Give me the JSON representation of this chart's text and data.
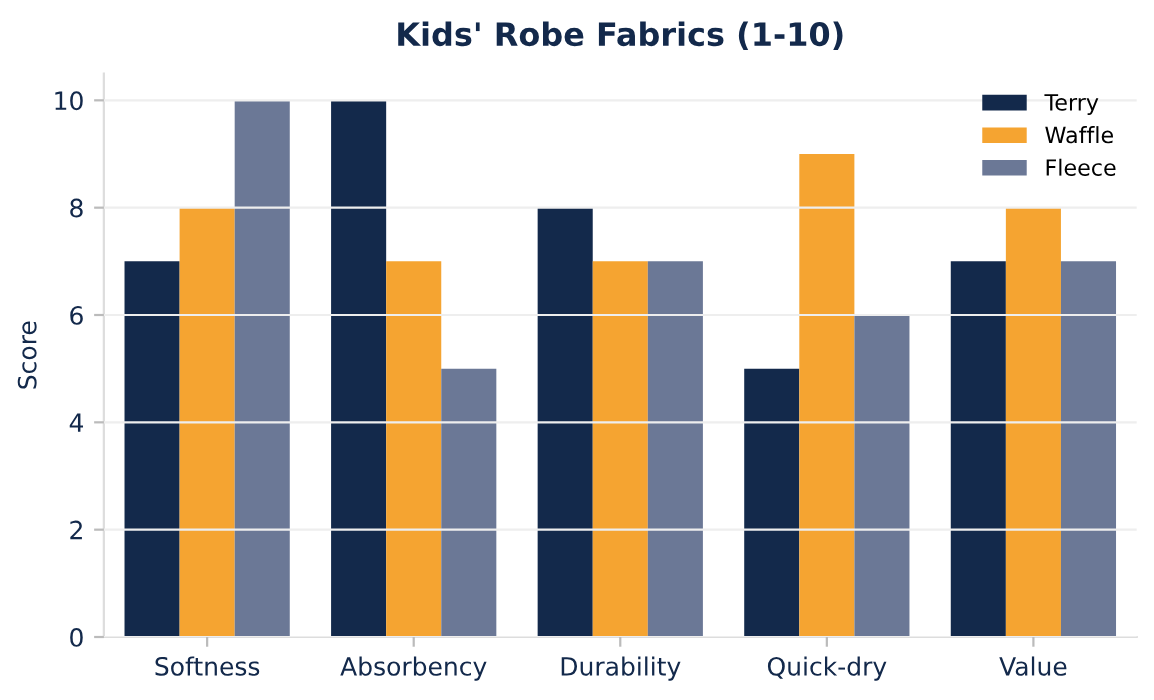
{
  "chart_data": {
    "type": "bar",
    "title": "Kids' Robe Fabrics (1-10)",
    "ylabel": "Score",
    "categories": [
      "Softness",
      "Absorbency",
      "Durability",
      "Quick-dry",
      "Value"
    ],
    "series": [
      {
        "name": "Terry",
        "color": "#13294b",
        "values": [
          7,
          10,
          8,
          5,
          7
        ]
      },
      {
        "name": "Waffle",
        "color": "#f5a431",
        "values": [
          8,
          7,
          7,
          9,
          8
        ]
      },
      {
        "name": "Fleece",
        "color": "#6b7896",
        "values": [
          10,
          5,
          7,
          6,
          7
        ]
      }
    ],
    "ylim": [
      0,
      10.5
    ],
    "yticks": [
      0,
      2,
      4,
      6,
      8,
      10
    ],
    "grid": "y",
    "legend": "top right"
  }
}
